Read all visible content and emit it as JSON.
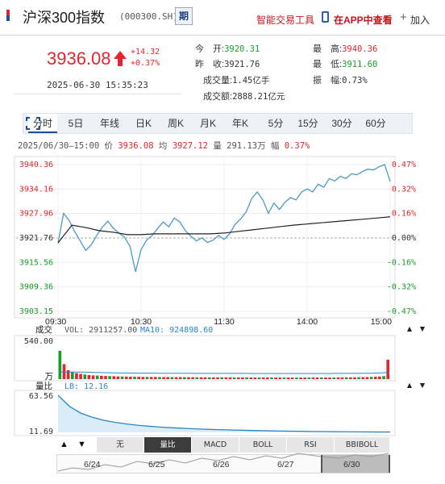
{
  "header": {
    "name": "沪深300指数",
    "code": "(000300.SH)",
    "period_button": "期",
    "link_trading": "智能交易工具",
    "link_app": "在APP中查看",
    "add_label": "加入"
  },
  "quote": {
    "price": "3936.08",
    "change": "+14.32",
    "change_pct": "+0.37%",
    "timestamp": "2025-06-30 15:35:23",
    "fields": [
      {
        "key": "今　开:",
        "value": "3920.31",
        "tone": "green"
      },
      {
        "key": "最　高:",
        "value": "3940.36",
        "tone": "red"
      },
      {
        "key": "昨　收:",
        "value": "3921.76",
        "tone": "dark"
      },
      {
        "key": "最　低:",
        "value": "3911.60",
        "tone": "green"
      },
      {
        "key": "成交量:",
        "value": "1.45亿手",
        "tone": "dark"
      },
      {
        "key": "振　幅:",
        "value": "0.73%",
        "tone": "dark"
      },
      {
        "key": "成交额:",
        "value": "2888.21亿元",
        "tone": "dark"
      }
    ]
  },
  "tabs": [
    "分时",
    "5日",
    "年线",
    "日K",
    "周K",
    "月K",
    "年K",
    "5分",
    "15分",
    "30分",
    "60分"
  ],
  "active_tab": "分时",
  "stats": {
    "date_range": "2025/06/30—15:00",
    "price_label": "价",
    "price": "3936.08",
    "avg_label": "均",
    "avg": "3927.12",
    "vol_label": "量",
    "vol": "291.13万",
    "amp_label": "幅",
    "amp": "0.37%"
  },
  "colors": {
    "up": "#e3262e",
    "down": "#1a9b2e",
    "price_line": "#4a9ac9",
    "avg_line": "#222222",
    "accent": "#1a4f9c"
  },
  "chart_data": [
    {
      "type": "line",
      "title": "",
      "x_ticks": [
        "09:30",
        "10:30",
        "11:30",
        "14:00",
        "15:00"
      ],
      "y_ticks": [
        "3940.36",
        "3934.16",
        "3927.96",
        "3921.76",
        "3915.56",
        "3909.36",
        "3903.15"
      ],
      "y_pct_ticks": [
        "0.47%",
        "0.32%",
        "0.16%",
        "0.00%",
        "-0.16%",
        "-0.32%",
        "-0.47%"
      ],
      "ylim": [
        3903.15,
        3940.36
      ],
      "reference": 3921.76,
      "grid": true,
      "series": [
        {
          "x": [
            0,
            4,
            8,
            12,
            16,
            20,
            24,
            28,
            32,
            36,
            40,
            44,
            48,
            52,
            56,
            60,
            64,
            68,
            72,
            76,
            80,
            84,
            88,
            92,
            96,
            100,
            104,
            108,
            112,
            116,
            120,
            124,
            128,
            132,
            136,
            140,
            144,
            148,
            152,
            156,
            160,
            164,
            168,
            172,
            176,
            180,
            184,
            188,
            192,
            196,
            200,
            204,
            208,
            212,
            216,
            220,
            224,
            228,
            232,
            236,
            240
          ],
          "values": [
            3920.5,
            3928.0,
            3926.2,
            3923.4,
            3921.0,
            3918.6,
            3920.0,
            3922.4,
            3924.5,
            3926.0,
            3924.2,
            3923.0,
            3922.0,
            3919.6,
            3913.2,
            3918.8,
            3921.2,
            3922.4,
            3924.2,
            3925.8,
            3924.6,
            3926.8,
            3925.8,
            3923.6,
            3922.2,
            3921.0,
            3921.8,
            3920.6,
            3921.2,
            3922.4,
            3921.4,
            3922.8,
            3925.2,
            3926.6,
            3928.4,
            3931.8,
            3933.4,
            3931.4,
            3928.0,
            3930.6,
            3929.0,
            3930.8,
            3932.0,
            3931.4,
            3933.4,
            3934.2,
            3933.4,
            3935.4,
            3934.6,
            3936.8,
            3936.2,
            3937.4,
            3936.8,
            3938.0,
            3937.8,
            3938.6,
            3939.2,
            3939.0,
            3939.8,
            3940.36,
            3936.08
          ]
        },
        {
          "x": [
            0,
            10,
            20,
            30,
            40,
            50,
            60,
            70,
            80,
            90,
            100,
            110,
            120,
            130,
            140,
            150,
            160,
            170,
            180,
            190,
            200,
            210,
            220,
            230,
            240
          ],
          "values": [
            3920.5,
            3925.0,
            3924.4,
            3923.6,
            3923.2,
            3922.6,
            3922.6,
            3922.8,
            3922.8,
            3922.8,
            3922.8,
            3922.8,
            3923.0,
            3923.4,
            3923.8,
            3924.2,
            3924.6,
            3925.0,
            3925.3,
            3925.6,
            3925.9,
            3926.2,
            3926.5,
            3926.8,
            3927.12
          ]
        }
      ]
    },
    {
      "type": "bar",
      "title": "",
      "label": "成交",
      "legend": [
        "VOL: 2911257.00",
        "MA10: 924898.60"
      ],
      "y_ticks": [
        "540.00",
        "万"
      ],
      "ylim": [
        0,
        540
      ],
      "values": [
        380,
        200,
        120,
        95,
        80,
        70,
        62,
        55,
        50,
        48,
        45,
        42,
        40,
        38,
        36,
        35,
        34,
        33,
        32,
        31,
        30,
        30,
        29,
        29,
        28,
        28,
        28,
        27,
        27,
        27,
        26,
        26,
        26,
        25,
        25,
        25,
        24,
        24,
        24,
        24,
        24,
        23,
        23,
        23,
        23,
        23,
        22,
        22,
        22,
        22,
        22,
        22,
        22,
        21,
        21,
        21,
        21,
        21,
        21,
        21,
        21,
        22,
        22,
        22,
        22,
        22,
        23,
        23,
        23,
        24,
        24,
        25,
        26,
        27,
        28,
        30,
        32,
        35,
        40,
        260
      ]
    },
    {
      "type": "line",
      "title": "",
      "label": "量比",
      "legend": [
        "LB: 12.16"
      ],
      "y_ticks": [
        "63.56",
        "11.69"
      ],
      "ylim": [
        11.69,
        63.56
      ],
      "values": [
        63.56,
        48.0,
        38.5,
        32.8,
        28.6,
        25.6,
        23.4,
        21.6,
        20.2,
        19.0,
        18.1,
        17.3,
        16.6,
        16.0,
        15.5,
        15.1,
        14.7,
        14.3,
        14.0,
        13.7,
        13.4,
        13.2,
        13.0,
        12.8,
        12.6,
        12.5,
        12.4,
        12.3,
        12.2,
        12.16
      ]
    }
  ],
  "indicator_tabs": [
    "无",
    "量比",
    "MACD",
    "BOLL",
    "RSI",
    "BBIBOLL"
  ],
  "active_indicator": "量比",
  "nav_days": [
    "6/24",
    "6/25",
    "6/26",
    "6/27",
    "6/30"
  ]
}
